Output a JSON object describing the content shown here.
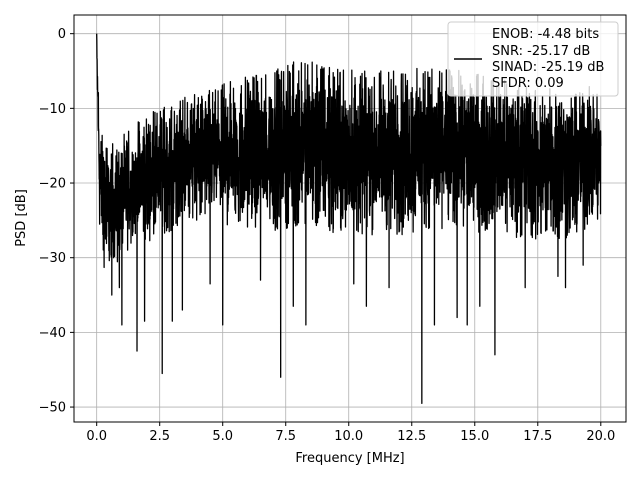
{
  "chart_data": {
    "type": "line",
    "title": "",
    "xlabel": "Frequency [MHz]",
    "ylabel": "PSD [dB]",
    "xlim": [
      -0.9,
      21.0
    ],
    "ylim": [
      -52.0,
      2.5
    ],
    "xticks": [
      0.0,
      2.5,
      5.0,
      7.5,
      10.0,
      12.5,
      15.0,
      17.5,
      20.0
    ],
    "xtick_labels": [
      "0.0",
      "2.5",
      "5.0",
      "7.5",
      "10.0",
      "12.5",
      "15.0",
      "17.5",
      "20.0"
    ],
    "yticks": [
      0,
      -10,
      -20,
      -30,
      -40,
      -50
    ],
    "ytick_labels": [
      "0",
      "−10",
      "−20",
      "−30",
      "−40",
      "−50"
    ],
    "grid": true,
    "legend_position": "top-right",
    "legend_lines": [
      "ENOB: -4.48 bits",
      "SNR: -25.17 dB",
      "SINAD: -25.19 dB",
      "SFDR: 0.09"
    ],
    "series": [
      {
        "color": "#000000",
        "envelope": {
          "x": [
            0.0,
            0.05,
            0.1,
            0.15,
            0.3,
            0.5,
            0.75,
            1.0,
            1.25,
            1.5,
            1.75,
            2.0,
            2.5,
            3.0,
            3.5,
            4.0,
            4.5,
            5.0,
            6.0,
            7.0,
            8.0,
            9.0,
            10.0,
            11.0,
            12.0,
            13.0,
            14.0,
            15.0,
            16.0,
            17.0,
            18.0,
            19.0,
            19.5,
            20.0
          ],
          "upper": [
            0.0,
            -4.0,
            -9.5,
            -12.0,
            -14.5,
            -15.5,
            -13.5,
            -14.0,
            -12.5,
            -12.0,
            -11.5,
            -11.0,
            -9.5,
            -9.5,
            -8.5,
            -8.0,
            -7.5,
            -6.5,
            -5.5,
            -5.0,
            -3.5,
            -4.0,
            -4.5,
            -5.0,
            -4.5,
            -4.5,
            -4.5,
            -5.0,
            -6.0,
            -6.5,
            -7.0,
            -7.5,
            -7.0,
            -8.0
          ],
          "lower": [
            -5.0,
            -15.0,
            -25.0,
            -29.0,
            -31.5,
            -30.5,
            -31.0,
            -30.0,
            -29.0,
            -28.5,
            -28.0,
            -28.0,
            -27.0,
            -26.5,
            -25.5,
            -25.0,
            -25.0,
            -26.0,
            -26.0,
            -26.5,
            -26.0,
            -26.5,
            -27.0,
            -27.0,
            -27.0,
            -26.5,
            -26.0,
            -26.5,
            -27.0,
            -27.5,
            -28.0,
            -27.5,
            -26.0,
            -25.0
          ]
        },
        "dips": [
          {
            "x": 0.6,
            "y": -35.0
          },
          {
            "x": 0.9,
            "y": -34.0
          },
          {
            "x": 1.0,
            "y": -39.0
          },
          {
            "x": 1.6,
            "y": -42.5
          },
          {
            "x": 1.9,
            "y": -38.5
          },
          {
            "x": 2.6,
            "y": -45.5
          },
          {
            "x": 3.0,
            "y": -38.5
          },
          {
            "x": 3.4,
            "y": -37.0
          },
          {
            "x": 4.5,
            "y": -33.5
          },
          {
            "x": 5.0,
            "y": -39.0
          },
          {
            "x": 6.5,
            "y": -33.0
          },
          {
            "x": 7.3,
            "y": -46.0
          },
          {
            "x": 7.8,
            "y": -36.5
          },
          {
            "x": 8.3,
            "y": -39.0
          },
          {
            "x": 10.2,
            "y": -33.5
          },
          {
            "x": 10.7,
            "y": -36.5
          },
          {
            "x": 11.6,
            "y": -34.0
          },
          {
            "x": 12.9,
            "y": -49.5
          },
          {
            "x": 13.4,
            "y": -39.0
          },
          {
            "x": 14.3,
            "y": -38.0
          },
          {
            "x": 14.7,
            "y": -39.0
          },
          {
            "x": 15.2,
            "y": -36.5
          },
          {
            "x": 15.8,
            "y": -43.0
          },
          {
            "x": 17.0,
            "y": -34.0
          },
          {
            "x": 18.3,
            "y": -32.5
          },
          {
            "x": 18.6,
            "y": -34.0
          },
          {
            "x": 19.3,
            "y": -31.0
          }
        ]
      }
    ]
  }
}
